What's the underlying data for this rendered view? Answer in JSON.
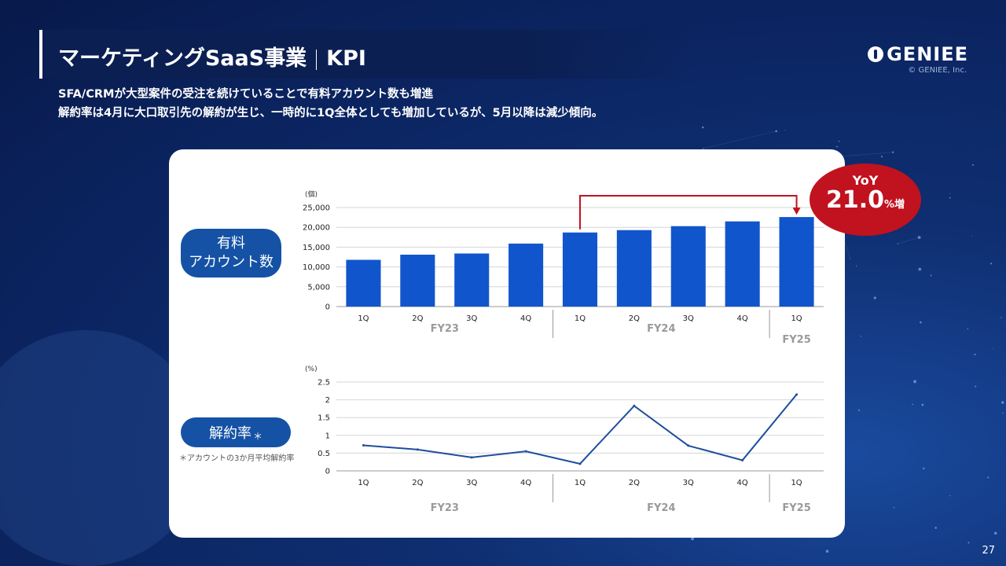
{
  "header": {
    "title_main": "マーケティングSaaS事業",
    "title_kpi": "KPI",
    "logo_text": "GENIEE",
    "copyright": "© GENIEE, Inc."
  },
  "subtitle": {
    "line1": "SFA/CRMが大型案件の受注を続けていることで有料アカウント数も増進",
    "line2": "解約率は4月に大口取引先の解約が生じ、一時的に1Q全体としても増加しているが、5月以降は減少傾向。"
  },
  "labels": {
    "paid_accounts_line1": "有料",
    "paid_accounts_line2": "アカウント数",
    "churn": "解約率",
    "churn_mark": "＊",
    "churn_note": "＊アカウントの3か月平均解約率"
  },
  "yoy": {
    "label": "YoY",
    "value": "21.0",
    "unit": "%増"
  },
  "page_number": "27",
  "colors": {
    "bar": "#1155cc",
    "line": "#1f4e9c",
    "accent_red": "#c1121f",
    "pill": "#1552a5"
  },
  "chart_data": [
    {
      "type": "bar",
      "unit_label": "(個)",
      "categories": [
        "1Q",
        "2Q",
        "3Q",
        "4Q",
        "1Q",
        "2Q",
        "3Q",
        "4Q",
        "1Q"
      ],
      "groups": [
        {
          "label": "FY23",
          "count": 4
        },
        {
          "label": "FY24",
          "count": 4
        },
        {
          "label": "FY25",
          "count": 1
        }
      ],
      "values": [
        11800,
        13100,
        13400,
        15900,
        18700,
        19300,
        20300,
        21500,
        22600
      ],
      "ylim": [
        0,
        25000
      ],
      "yticks": [
        "0",
        "5,000",
        "10,000",
        "15,000",
        "20,000",
        "25,000"
      ],
      "ytick_values": [
        0,
        5000,
        10000,
        15000,
        20000,
        25000
      ],
      "grid": true
    },
    {
      "type": "line",
      "unit_label": "(%)",
      "categories": [
        "1Q",
        "2Q",
        "3Q",
        "4Q",
        "1Q",
        "2Q",
        "3Q",
        "4Q",
        "1Q"
      ],
      "groups": [
        {
          "label": "FY23",
          "count": 4
        },
        {
          "label": "FY24",
          "count": 4
        },
        {
          "label": "FY25",
          "count": 1
        }
      ],
      "values": [
        0.72,
        0.6,
        0.38,
        0.55,
        0.2,
        1.83,
        0.71,
        0.3,
        2.15
      ],
      "ylim": [
        0,
        2.5
      ],
      "yticks": [
        "0",
        "0.5",
        "1",
        "1.5",
        "2",
        "2.5"
      ],
      "ytick_values": [
        0,
        0.5,
        1,
        1.5,
        2,
        2.5
      ],
      "grid": true
    }
  ]
}
